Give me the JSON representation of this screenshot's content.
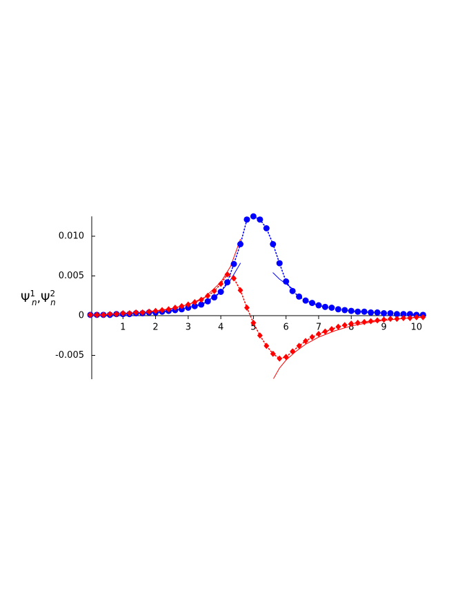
{
  "chart_data": {
    "type": "line",
    "y_label": {
      "base": "Ψ",
      "subscript": "n",
      "superscripts": [
        "1",
        "2"
      ],
      "separator": ","
    },
    "xlim": [
      0,
      10.3
    ],
    "ylim": [
      -0.008,
      0.0125
    ],
    "xticks": [
      1,
      2,
      3,
      4,
      5,
      6,
      7,
      8,
      9,
      10
    ],
    "yticks": [
      -0.005,
      0,
      0.005,
      {
        "value": 0.01,
        "label": "0.010"
      }
    ],
    "series": [
      {
        "color": "#ff0000",
        "line_style": "solid",
        "marker": "none",
        "x": [
          0,
          0.5,
          1,
          1.5,
          2,
          2.5,
          3,
          3.5,
          4,
          4.3,
          4.6
        ],
        "values": [
          0.0001,
          0.0001,
          0.0003,
          0.0004,
          0.0006,
          0.0009,
          0.0014,
          0.0023,
          0.0042,
          0.0062,
          0.0096
        ]
      },
      {
        "color": "#ff0000",
        "line_style": "solid",
        "marker": "none",
        "x": [
          5.62,
          5.8,
          6.0,
          6.3,
          6.6,
          7,
          7.5,
          8,
          8.5,
          9,
          9.5,
          10,
          10.2
        ],
        "values": [
          -0.0079,
          -0.0066,
          -0.0056,
          -0.0045,
          -0.0036,
          -0.0027,
          -0.0019,
          -0.0013,
          -0.0009,
          -0.0006,
          -0.0004,
          -0.0002,
          -0.0002
        ]
      },
      {
        "color": "#0000ff",
        "line_style": "solid",
        "marker": "none",
        "x": [
          0,
          0.5,
          1,
          1.5,
          2,
          2.5,
          3,
          3.5,
          4,
          4.3,
          4.6
        ],
        "values": [
          0.0001,
          0.0001,
          0.0002,
          0.0003,
          0.0004,
          0.0006,
          0.001,
          0.0016,
          0.003,
          0.0045,
          0.0066
        ]
      },
      {
        "color": "#0000ff",
        "line_style": "solid",
        "marker": "none",
        "x": [
          5.6,
          5.8,
          6.0,
          6.2
        ],
        "values": [
          0.0054,
          0.0046,
          0.004,
          0.0034
        ]
      },
      {
        "color": "#0000ff",
        "line_style": "dotted",
        "marker": "circle",
        "x": [
          0,
          0.2,
          0.4,
          0.6,
          0.8,
          1,
          1.2,
          1.4,
          1.6,
          1.8,
          2,
          2.2,
          2.4,
          2.6,
          2.8,
          3,
          3.2,
          3.4,
          3.6,
          3.8,
          4,
          4.2,
          4.4,
          4.6,
          4.8,
          5,
          5.2,
          5.4,
          5.6,
          5.8,
          6,
          6.2,
          6.4,
          6.6,
          6.8,
          7,
          7.2,
          7.4,
          7.6,
          7.8,
          8,
          8.2,
          8.4,
          8.6,
          8.8,
          9,
          9.2,
          9.4,
          9.6,
          9.8,
          10,
          10.2
        ],
        "values": [
          0.0001,
          0.0001,
          0.0001,
          0.0001,
          0.0002,
          0.0002,
          0.0002,
          0.0003,
          0.0003,
          0.0004,
          0.0004,
          0.0005,
          0.0006,
          0.0007,
          0.0008,
          0.001,
          0.0012,
          0.0014,
          0.0018,
          0.0023,
          0.003,
          0.0042,
          0.0065,
          0.009,
          0.0121,
          0.0125,
          0.0121,
          0.011,
          0.009,
          0.0066,
          0.0043,
          0.0031,
          0.0024,
          0.0019,
          0.0016,
          0.0013,
          0.0011,
          0.001,
          0.0008,
          0.0007,
          0.0006,
          0.0005,
          0.0005,
          0.0004,
          0.0004,
          0.0003,
          0.0003,
          0.0002,
          0.0002,
          0.0002,
          0.0001,
          0.0001
        ]
      },
      {
        "color": "#ff0000",
        "line_style": "dotted",
        "marker": "diamond",
        "x": [
          0,
          0.2,
          0.4,
          0.6,
          0.8,
          1,
          1.2,
          1.4,
          1.6,
          1.8,
          2,
          2.2,
          2.4,
          2.6,
          2.8,
          3,
          3.2,
          3.4,
          3.6,
          3.8,
          4,
          4.2,
          4.4,
          4.6,
          4.8,
          5,
          5.2,
          5.4,
          5.6,
          5.8,
          6,
          6.2,
          6.4,
          6.6,
          6.8,
          7,
          7.2,
          7.4,
          7.6,
          7.8,
          8,
          8.2,
          8.4,
          8.6,
          8.8,
          9,
          9.2,
          9.4,
          9.6,
          9.8,
          10,
          10.2
        ],
        "values": [
          0.0001,
          0.0001,
          0.0001,
          0.0002,
          0.0002,
          0.0003,
          0.0003,
          0.0004,
          0.0004,
          0.0005,
          0.0006,
          0.0007,
          0.0008,
          0.001,
          0.0012,
          0.0014,
          0.0017,
          0.002,
          0.0025,
          0.0031,
          0.004,
          0.0052,
          0.0047,
          0.0032,
          0.001,
          -0.0009,
          -0.0025,
          -0.0038,
          -0.0048,
          -0.0054,
          -0.0052,
          -0.0045,
          -0.0038,
          -0.0032,
          -0.0027,
          -0.0023,
          -0.002,
          -0.0017,
          -0.0014,
          -0.0012,
          -0.001,
          -0.0009,
          -0.0008,
          -0.0007,
          -0.0006,
          -0.0005,
          -0.0004,
          -0.0004,
          -0.0003,
          -0.0003,
          -0.0002,
          -0.0002
        ]
      }
    ]
  }
}
